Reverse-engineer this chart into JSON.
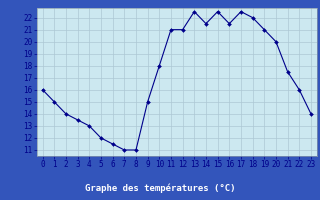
{
  "hours": [
    0,
    1,
    2,
    3,
    4,
    5,
    6,
    7,
    8,
    9,
    10,
    11,
    12,
    13,
    14,
    15,
    16,
    17,
    18,
    19,
    20,
    21,
    22,
    23
  ],
  "temps": [
    16,
    15,
    14,
    13.5,
    13,
    12,
    11.5,
    11,
    11,
    15,
    18,
    21,
    21,
    22.5,
    21.5,
    22.5,
    21.5,
    22.5,
    22,
    21,
    20,
    17.5,
    16,
    14
  ],
  "xlabel": "Graphe des températures (°C)",
  "ylim": [
    10.5,
    22.8
  ],
  "xlim": [
    -0.5,
    23.5
  ],
  "yticks": [
    11,
    12,
    13,
    14,
    15,
    16,
    17,
    18,
    19,
    20,
    21,
    22
  ],
  "xticks": [
    0,
    1,
    2,
    3,
    4,
    5,
    6,
    7,
    8,
    9,
    10,
    11,
    12,
    13,
    14,
    15,
    16,
    17,
    18,
    19,
    20,
    21,
    22,
    23
  ],
  "line_color": "#00008B",
  "marker": "D",
  "bg_color": "#cce8f0",
  "plot_bg_color": "#cce8f0",
  "grid_color": "#adc8d4",
  "spine_color": "#8899aa",
  "label_color": "#00008B",
  "bottom_bar_color": "#3355bb",
  "xlabel_fontsize": 6.5,
  "tick_fontsize": 5.5
}
